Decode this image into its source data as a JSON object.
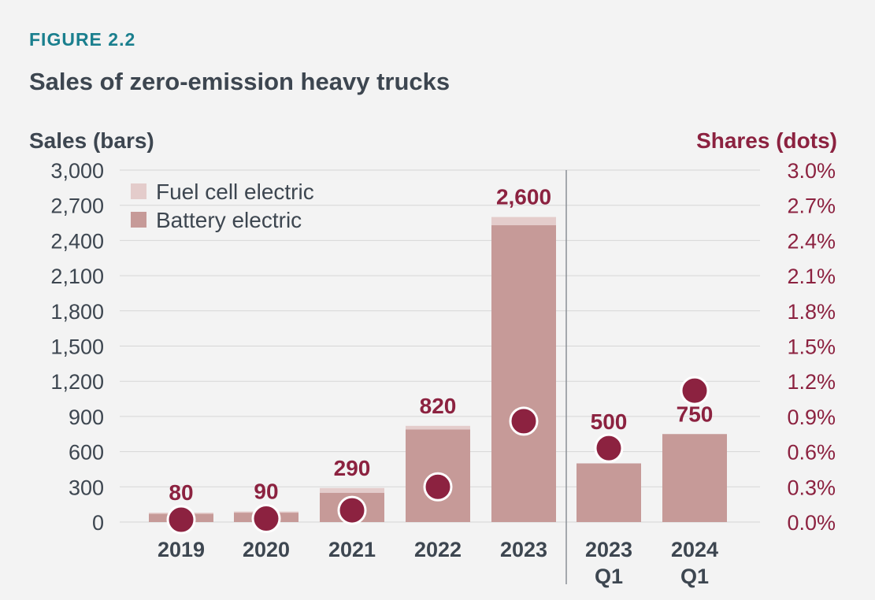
{
  "figure_label": "FIGURE 2.2",
  "colors": {
    "accent": "#1a7f8e",
    "text": "#3d4650",
    "share": "#8c2240",
    "battery": "#c69a98",
    "fuel_cell": "#e4cccb",
    "grid": "#d6d6d6",
    "divider": "#8a8f96"
  },
  "chart_data": {
    "type": "bar",
    "stacked": true,
    "title": "Sales of zero-emission heavy trucks",
    "left_axis": {
      "label": "Sales (bars)",
      "min": 0,
      "max": 3000,
      "ticks": [
        "0",
        "300",
        "600",
        "900",
        "1,200",
        "1,500",
        "1,800",
        "2,100",
        "2,400",
        "2,700",
        "3,000"
      ]
    },
    "right_axis": {
      "label": "Shares (dots)",
      "min": 0,
      "max": 3.0,
      "ticks": [
        "0.0%",
        "0.3%",
        "0.6%",
        "0.9%",
        "1.2%",
        "1.5%",
        "1.8%",
        "2.1%",
        "2.4%",
        "2.7%",
        "3.0%"
      ]
    },
    "categories": [
      {
        "lines": [
          "2019"
        ]
      },
      {
        "lines": [
          "2020"
        ]
      },
      {
        "lines": [
          "2021"
        ]
      },
      {
        "lines": [
          "2022"
        ]
      },
      {
        "lines": [
          "2023"
        ]
      },
      {
        "lines": [
          "2023",
          "Q1"
        ]
      },
      {
        "lines": [
          "2024",
          "Q1"
        ]
      }
    ],
    "divider_after_index": 4,
    "series": [
      {
        "name": "Battery electric",
        "values": [
          70,
          80,
          250,
          790,
          2530,
          500,
          750
        ]
      },
      {
        "name": "Fuel cell electric",
        "values": [
          10,
          10,
          40,
          30,
          70,
          0,
          0
        ]
      }
    ],
    "total_labels": [
      "80",
      "90",
      "290",
      "820",
      "2,600",
      "500",
      "750"
    ],
    "shares": [
      0.02,
      0.03,
      0.1,
      0.3,
      0.86,
      0.63,
      1.12
    ],
    "legend": [
      "Fuel cell electric",
      "Battery electric"
    ],
    "legend_position": "top-left",
    "grid": true
  }
}
